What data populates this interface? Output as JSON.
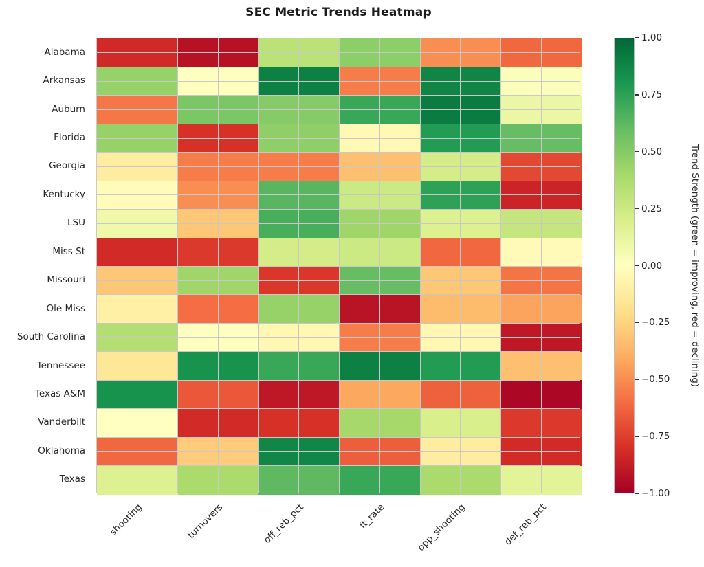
{
  "title": "SEC Metric Trends Heatmap",
  "chart_data": {
    "type": "heatmap",
    "title": "SEC Metric Trends Heatmap",
    "x_categories": [
      "shooting",
      "turnovers",
      "off_reb_pct",
      "ft_rate",
      "opp_shooting",
      "def_reb_pct"
    ],
    "y_categories": [
      "Alabama",
      "Arkansas",
      "Auburn",
      "Florida",
      "Georgia",
      "Kentucky",
      "LSU",
      "Miss St",
      "Missouri",
      "Ole Miss",
      "South Carolina",
      "Tennessee",
      "Texas A&M",
      "Vanderbilt",
      "Oklahoma",
      "Texas"
    ],
    "values": [
      [
        -0.83,
        -0.93,
        0.32,
        0.48,
        -0.5,
        -0.62
      ],
      [
        0.45,
        0.0,
        0.9,
        -0.55,
        0.88,
        0.02
      ],
      [
        -0.57,
        0.53,
        0.5,
        0.72,
        0.92,
        0.1
      ],
      [
        0.45,
        -0.8,
        0.47,
        -0.04,
        0.78,
        0.6
      ],
      [
        -0.12,
        -0.55,
        -0.55,
        -0.33,
        0.22,
        -0.72
      ],
      [
        -0.02,
        -0.5,
        0.64,
        0.25,
        0.75,
        -0.85
      ],
      [
        0.08,
        -0.3,
        0.68,
        0.42,
        0.18,
        0.28
      ],
      [
        -0.82,
        -0.77,
        0.22,
        0.25,
        -0.62,
        -0.03
      ],
      [
        -0.3,
        0.42,
        -0.78,
        0.6,
        -0.3,
        -0.58
      ],
      [
        -0.1,
        -0.6,
        0.45,
        -0.92,
        -0.35,
        -0.43
      ],
      [
        0.35,
        0.0,
        -0.05,
        -0.55,
        -0.05,
        -0.9
      ],
      [
        -0.15,
        0.82,
        0.72,
        0.9,
        0.78,
        -0.33
      ],
      [
        0.82,
        -0.67,
        -0.9,
        -0.42,
        -0.64,
        -0.97
      ],
      [
        0.0,
        -0.82,
        -0.8,
        0.4,
        0.2,
        -0.77
      ],
      [
        -0.62,
        -0.28,
        0.87,
        -0.65,
        -0.12,
        -0.82
      ],
      [
        0.18,
        0.38,
        0.62,
        0.72,
        0.38,
        0.15
      ]
    ],
    "vmin": -1,
    "vmax": 1,
    "grid": true,
    "grid_color": "#c8c8c8",
    "colormap_name": "RdYlGn",
    "colormap_stops": [
      [
        -1.0,
        "#a50026"
      ],
      [
        -0.8,
        "#d73027"
      ],
      [
        -0.6,
        "#f46d43"
      ],
      [
        -0.4,
        "#fdae61"
      ],
      [
        -0.2,
        "#fee08b"
      ],
      [
        0.0,
        "#ffffbf"
      ],
      [
        0.2,
        "#d9ef8b"
      ],
      [
        0.4,
        "#a6d96a"
      ],
      [
        0.6,
        "#66bd63"
      ],
      [
        0.8,
        "#1a9850"
      ],
      [
        1.0,
        "#006837"
      ]
    ],
    "colorbar": {
      "label": "Trend Strength (green = improving, red = declining)",
      "tick_labels": [
        "1.00",
        "0.75",
        "0.50",
        "0.25",
        "0.00",
        "−0.25",
        "−0.50",
        "−0.75",
        "−1.00"
      ],
      "tick_values": [
        1.0,
        0.75,
        0.5,
        0.25,
        0.0,
        -0.25,
        -0.5,
        -0.75,
        -1.0
      ]
    }
  }
}
